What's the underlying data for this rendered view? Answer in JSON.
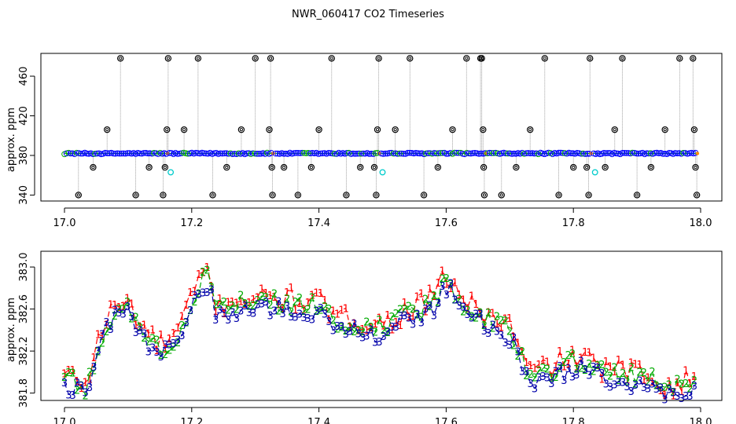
{
  "page": {
    "title": "NWR_060417  CO2 Timeseries"
  },
  "colors": {
    "axis": "#000000",
    "panel1_line": "#8a8a8a",
    "panel1_main": "#0000ff",
    "panel1_good": "#00aa00",
    "panel1_flag": "#ff8c00",
    "panel1_cyan": "#00cccc",
    "panel1_outlier": "#000000",
    "series1": "#ff0000",
    "series2": "#00aa00",
    "series3": "#0000aa"
  },
  "chart_data": [
    {
      "type": "scatter",
      "title": "",
      "xlabel": "",
      "ylabel": "approx. ppm",
      "xlim": [
        17.0,
        18.0
      ],
      "ylim": [
        334,
        483
      ],
      "x_ticks": [
        "17.0",
        "17.2",
        "17.4",
        "17.6",
        "17.8",
        "18.0"
      ],
      "y_ticks": [
        "340",
        "380",
        "420",
        "460"
      ],
      "grid": false,
      "legend": "none",
      "baseline_segments": [
        {
          "x_start": 17.0,
          "x_end": 17.162,
          "y": 382
        },
        {
          "x_start": 17.165,
          "x_end": 17.328,
          "y": 382
        },
        {
          "x_start": 17.332,
          "x_end": 17.495,
          "y": 382
        },
        {
          "x_start": 17.498,
          "x_end": 17.662,
          "y": 382
        },
        {
          "x_start": 17.665,
          "x_end": 17.828,
          "y": 382
        },
        {
          "x_start": 17.832,
          "x_end": 17.995,
          "y": 382
        }
      ],
      "outliers": [
        {
          "x": 17.022,
          "y": 340
        },
        {
          "x": 17.045,
          "y": 368
        },
        {
          "x": 17.067,
          "y": 406
        },
        {
          "x": 17.088,
          "y": 478
        },
        {
          "x": 17.112,
          "y": 340
        },
        {
          "x": 17.133,
          "y": 368
        },
        {
          "x": 17.155,
          "y": 340
        },
        {
          "x": 17.158,
          "y": 368
        },
        {
          "x": 17.161,
          "y": 406
        },
        {
          "x": 17.163,
          "y": 478
        },
        {
          "x": 17.188,
          "y": 406
        },
        {
          "x": 17.21,
          "y": 478
        },
        {
          "x": 17.233,
          "y": 340
        },
        {
          "x": 17.255,
          "y": 368
        },
        {
          "x": 17.278,
          "y": 406
        },
        {
          "x": 17.3,
          "y": 478
        },
        {
          "x": 17.322,
          "y": 406
        },
        {
          "x": 17.324,
          "y": 478
        },
        {
          "x": 17.326,
          "y": 368
        },
        {
          "x": 17.327,
          "y": 340
        },
        {
          "x": 17.345,
          "y": 368
        },
        {
          "x": 17.367,
          "y": 340
        },
        {
          "x": 17.388,
          "y": 368
        },
        {
          "x": 17.4,
          "y": 406
        },
        {
          "x": 17.42,
          "y": 478
        },
        {
          "x": 17.443,
          "y": 340
        },
        {
          "x": 17.465,
          "y": 368
        },
        {
          "x": 17.487,
          "y": 368
        },
        {
          "x": 17.49,
          "y": 340
        },
        {
          "x": 17.492,
          "y": 406
        },
        {
          "x": 17.494,
          "y": 478
        },
        {
          "x": 17.52,
          "y": 406
        },
        {
          "x": 17.543,
          "y": 478
        },
        {
          "x": 17.565,
          "y": 340
        },
        {
          "x": 17.587,
          "y": 368
        },
        {
          "x": 17.61,
          "y": 406
        },
        {
          "x": 17.632,
          "y": 478
        },
        {
          "x": 17.654,
          "y": 478
        },
        {
          "x": 17.656,
          "y": 478
        },
        {
          "x": 17.658,
          "y": 406
        },
        {
          "x": 17.659,
          "y": 368
        },
        {
          "x": 17.66,
          "y": 340
        },
        {
          "x": 17.687,
          "y": 340
        },
        {
          "x": 17.71,
          "y": 368
        },
        {
          "x": 17.732,
          "y": 406
        },
        {
          "x": 17.755,
          "y": 478
        },
        {
          "x": 17.777,
          "y": 340
        },
        {
          "x": 17.8,
          "y": 368
        },
        {
          "x": 17.821,
          "y": 368
        },
        {
          "x": 17.824,
          "y": 340
        },
        {
          "x": 17.826,
          "y": 478
        },
        {
          "x": 17.85,
          "y": 368
        },
        {
          "x": 17.865,
          "y": 406
        },
        {
          "x": 17.877,
          "y": 478
        },
        {
          "x": 17.9,
          "y": 340
        },
        {
          "x": 17.922,
          "y": 368
        },
        {
          "x": 17.944,
          "y": 406
        },
        {
          "x": 17.967,
          "y": 478
        },
        {
          "x": 17.988,
          "y": 478
        },
        {
          "x": 17.99,
          "y": 406
        },
        {
          "x": 17.992,
          "y": 368
        },
        {
          "x": 17.994,
          "y": 340
        }
      ],
      "cyan_points": [
        {
          "x": 17.167,
          "y": 363
        },
        {
          "x": 17.5,
          "y": 363
        },
        {
          "x": 17.834,
          "y": 363
        }
      ]
    },
    {
      "type": "line",
      "title": "",
      "xlabel": "",
      "ylabel": "approx. ppm",
      "xlim": [
        17.0,
        18.0
      ],
      "ylim": [
        381.73,
        383.15
      ],
      "x_ticks": [
        "17.0",
        "17.2",
        "17.4",
        "17.6",
        "17.8",
        "18.0"
      ],
      "y_ticks": [
        "381.8",
        "382.2",
        "382.6",
        "383.0"
      ],
      "grid": false,
      "legend": "none",
      "marker_labels": [
        "1",
        "2",
        "3"
      ],
      "keypoints": {
        "x": [
          17.0,
          17.02,
          17.035,
          17.055,
          17.075,
          17.1,
          17.12,
          17.15,
          17.175,
          17.2,
          17.222,
          17.24,
          17.26,
          17.3,
          17.35,
          17.4,
          17.43,
          17.47,
          17.5,
          17.54,
          17.58,
          17.6,
          17.63,
          17.66,
          17.7,
          17.73,
          17.76,
          17.8,
          17.82,
          17.85,
          17.9,
          17.93,
          17.95,
          17.99
        ],
        "y": [
          381.93,
          381.88,
          381.83,
          382.3,
          382.55,
          382.62,
          382.4,
          382.2,
          382.3,
          382.65,
          382.95,
          382.55,
          382.65,
          382.65,
          382.65,
          382.62,
          382.45,
          382.45,
          382.4,
          382.55,
          382.65,
          382.88,
          382.62,
          382.5,
          382.4,
          381.95,
          382.0,
          382.1,
          382.05,
          381.98,
          381.95,
          381.9,
          381.82,
          381.88
        ]
      },
      "series": [
        {
          "name": "1",
          "offset": 0.05,
          "noise": 0.11
        },
        {
          "name": "2",
          "offset": 0.01,
          "noise": 0.09
        },
        {
          "name": "3",
          "offset": -0.05,
          "noise": 0.09
        }
      ]
    }
  ]
}
